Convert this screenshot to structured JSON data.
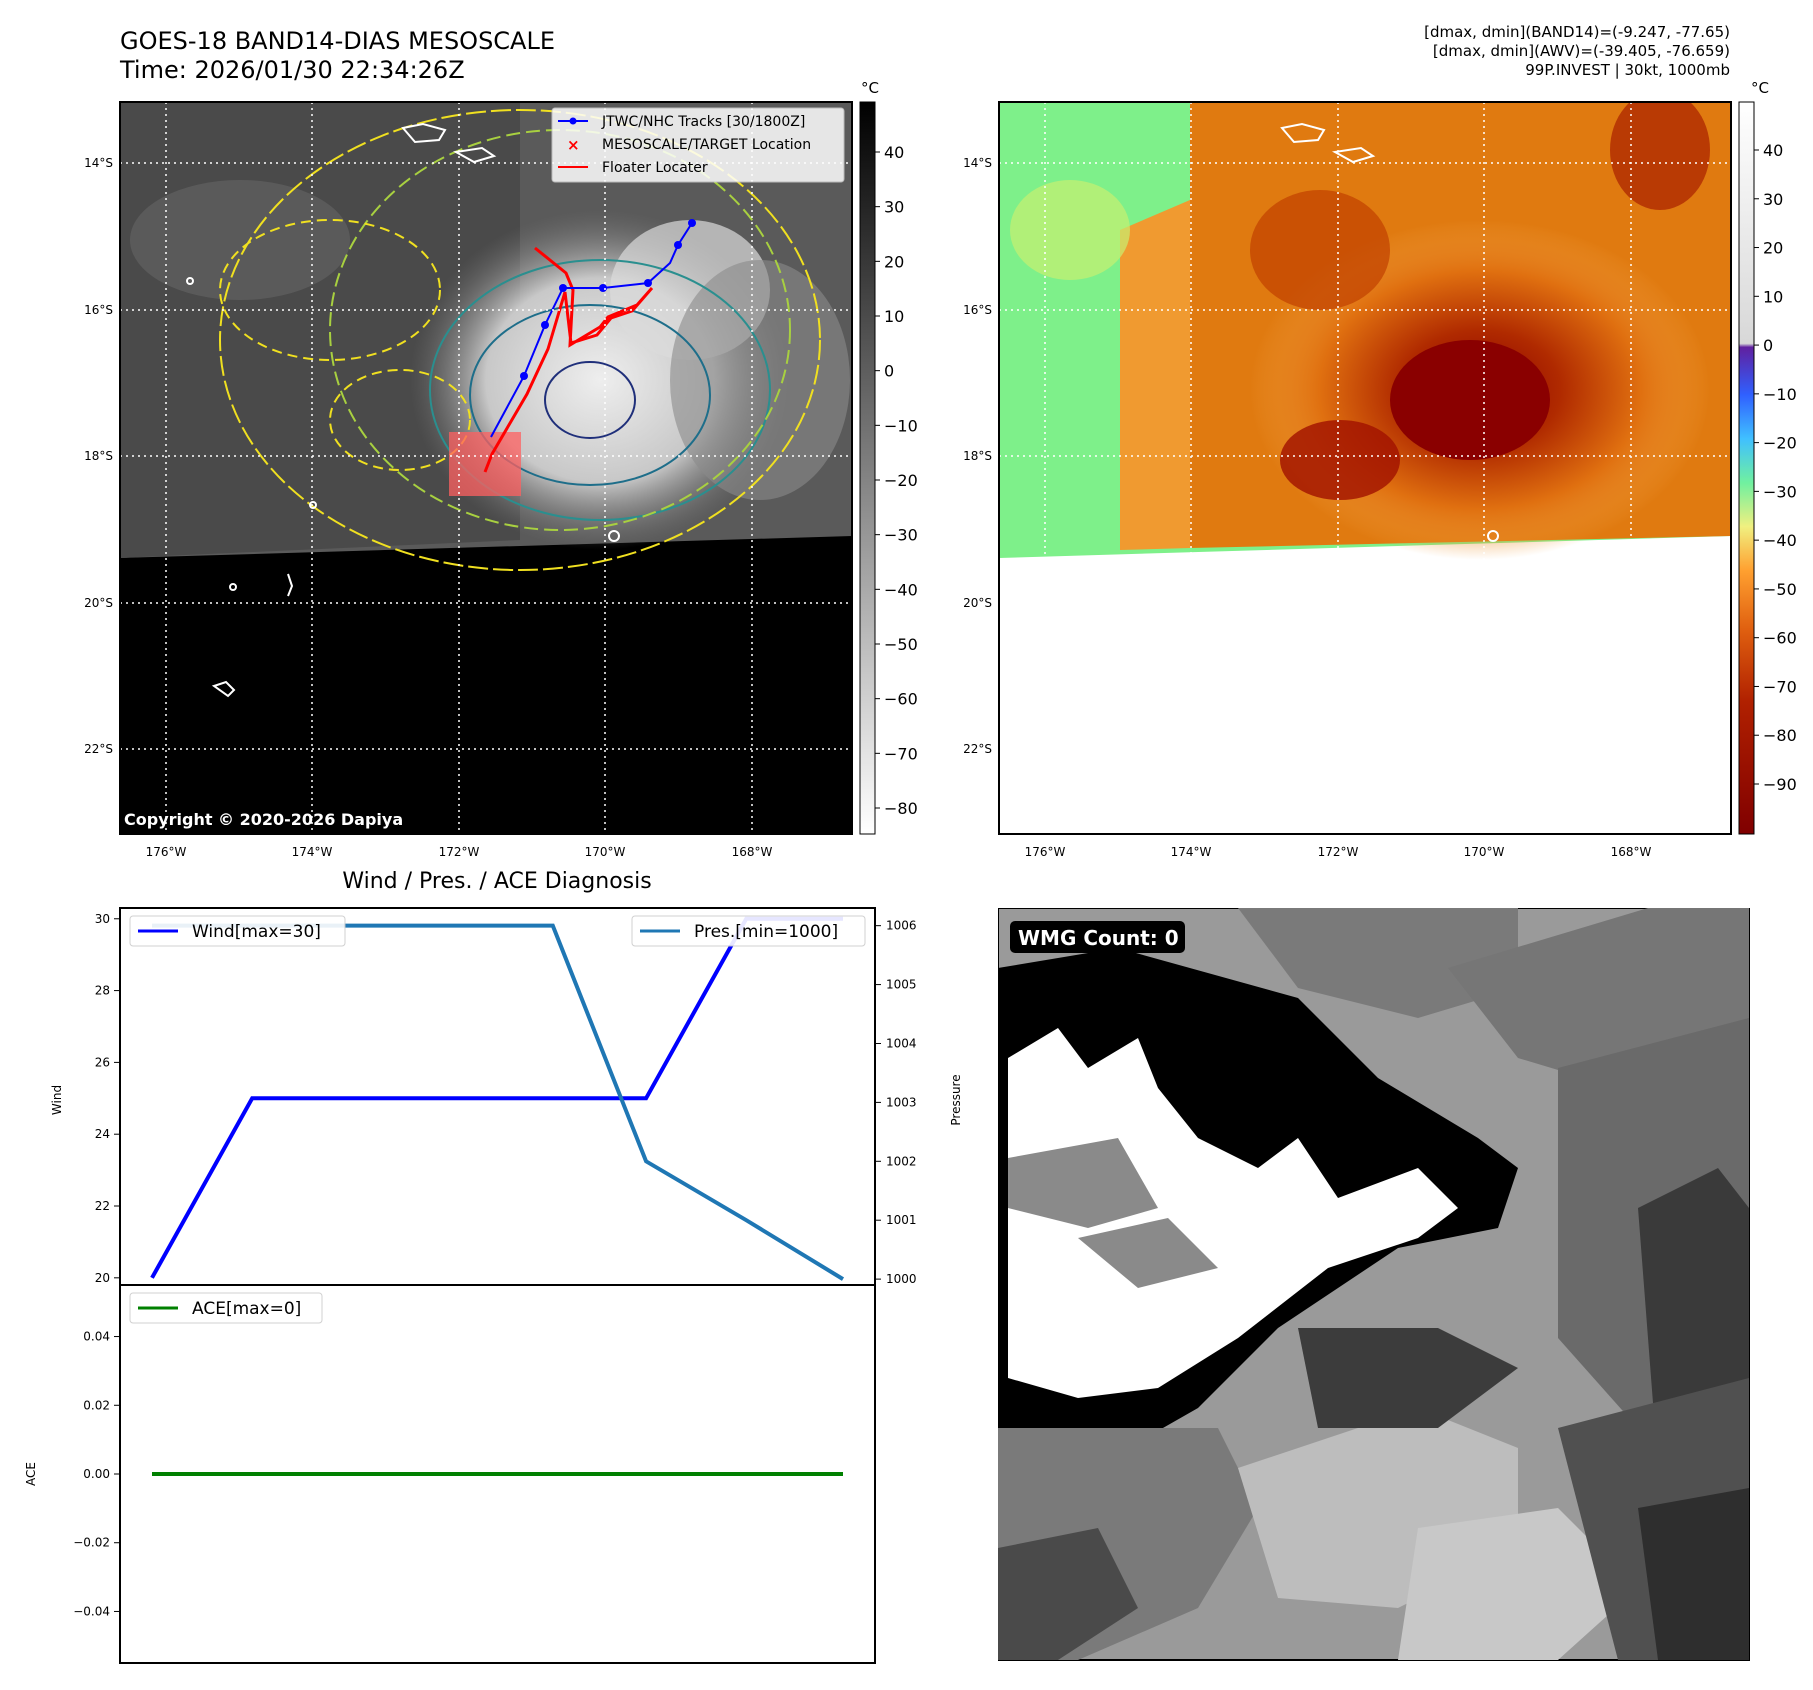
{
  "header": {
    "title_line1": "GOES-18 BAND14-DIAS MESOSCALE",
    "title_line2": "Time: 2026/01/30 22:34:26Z",
    "info_line1": "[dmax, dmin](BAND14)=(-9.247, -77.65)",
    "info_line2": "[dmax, dmin](AWV)=(-39.405, -76.659)",
    "info_line3": "99P.INVEST | 30kt, 1000mb"
  },
  "map": {
    "lat_labels": [
      "14°S",
      "16°S",
      "18°S",
      "20°S",
      "22°S"
    ],
    "lon_labels": [
      "176°W",
      "174°W",
      "172°W",
      "170°W",
      "168°W"
    ],
    "copyright": "Copyright © 2020-2026 Dapiya",
    "legend": {
      "tracks": "JTWC/NHC Tracks [30/1800Z]",
      "target": "MESOSCALE/TARGET Location",
      "floater": "Floater Locater"
    },
    "colors": {
      "track": "#0000ff",
      "floater": "#ff0000",
      "target": "#ff0000"
    }
  },
  "colorbar_left": {
    "unit": "°C",
    "ticks": [
      "40",
      "30",
      "20",
      "10",
      "0",
      "−10",
      "−20",
      "−30",
      "−40",
      "−50",
      "−60",
      "−70",
      "−80"
    ]
  },
  "colorbar_right": {
    "unit": "°C",
    "ticks": [
      "40",
      "30",
      "20",
      "10",
      "0",
      "−10",
      "−20",
      "−30",
      "−40",
      "−50",
      "−60",
      "−70",
      "−80",
      "−90"
    ]
  },
  "wmg": {
    "label": "WMG Count: 0"
  },
  "chart_data": [
    {
      "type": "line",
      "title": "Wind / Pres. / ACE Diagnosis",
      "ylabel": "Wind",
      "y2label": "Pressure",
      "ylim": [
        19.8,
        30.3
      ],
      "y2lim": [
        999.9,
        1006.3
      ],
      "yticks": [
        "20",
        "22",
        "24",
        "26",
        "28",
        "30"
      ],
      "y2ticks": [
        "1000",
        "1001",
        "1002",
        "1003",
        "1004",
        "1005",
        "1006"
      ],
      "series": [
        {
          "name": "Wind[max=30]",
          "axis": "left",
          "color": "#0000ff",
          "values": [
            20,
            25,
            25,
            25,
            30,
            30
          ]
        },
        {
          "name": "Pres.[min=1000]",
          "axis": "right",
          "color": "#1f77b4",
          "values": [
            1006,
            1006,
            1006,
            1002,
            1001,
            1000
          ]
        }
      ],
      "x_frac": [
        0,
        0.145,
        0.58,
        0.715,
        0.86,
        1.0
      ]
    },
    {
      "type": "line",
      "ylabel": "ACE",
      "ylim": [
        -0.055,
        0.055
      ],
      "yticks": [
        "0.04",
        "0.02",
        "0.00",
        "−0.02",
        "−0.04"
      ],
      "series": [
        {
          "name": "ACE[max=0]",
          "color": "#008000",
          "values": [
            0,
            0
          ]
        }
      ]
    }
  ]
}
